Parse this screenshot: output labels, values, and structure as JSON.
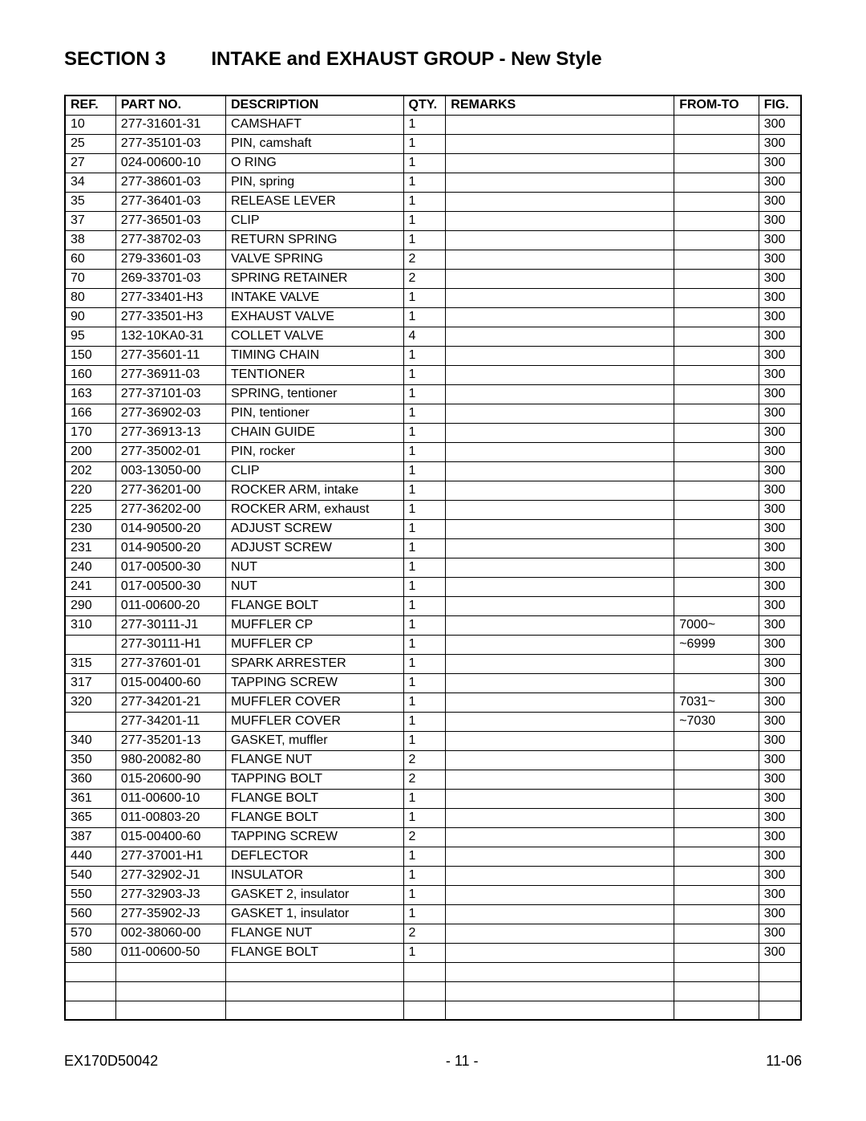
{
  "header": {
    "section_label": "SECTION 3",
    "section_title": "INTAKE and EXHAUST GROUP - New Style"
  },
  "table": {
    "columns": [
      "REF.",
      "PART NO.",
      "DESCRIPTION",
      "QTY.",
      "REMARKS",
      "FROM-TO",
      "FIG."
    ],
    "rows": [
      [
        "10",
        "277-31601-31",
        "CAMSHAFT",
        "1",
        "",
        "",
        "300"
      ],
      [
        "25",
        "277-35101-03",
        "PIN, camshaft",
        "1",
        "",
        "",
        "300"
      ],
      [
        "27",
        "024-00600-10",
        "O RING",
        "1",
        "",
        "",
        "300"
      ],
      [
        "34",
        "277-38601-03",
        "PIN, spring",
        "1",
        "",
        "",
        "300"
      ],
      [
        "35",
        "277-36401-03",
        "RELEASE LEVER",
        "1",
        "",
        "",
        "300"
      ],
      [
        "37",
        "277-36501-03",
        "CLIP",
        "1",
        "",
        "",
        "300"
      ],
      [
        "38",
        "277-38702-03",
        "RETURN SPRING",
        "1",
        "",
        "",
        "300"
      ],
      [
        "60",
        "279-33601-03",
        "VALVE SPRING",
        "2",
        "",
        "",
        "300"
      ],
      [
        "70",
        "269-33701-03",
        "SPRING RETAINER",
        "2",
        "",
        "",
        "300"
      ],
      [
        "80",
        "277-33401-H3",
        "INTAKE VALVE",
        "1",
        "",
        "",
        "300"
      ],
      [
        "90",
        "277-33501-H3",
        "EXHAUST VALVE",
        "1",
        "",
        "",
        "300"
      ],
      [
        "95",
        "132-10KA0-31",
        "COLLET VALVE",
        "4",
        "",
        "",
        "300"
      ],
      [
        "150",
        "277-35601-11",
        "TIMING CHAIN",
        "1",
        "",
        "",
        "300"
      ],
      [
        "160",
        "277-36911-03",
        "TENTIONER",
        "1",
        "",
        "",
        "300"
      ],
      [
        "163",
        "277-37101-03",
        "SPRING, tentioner",
        "1",
        "",
        "",
        "300"
      ],
      [
        "166",
        "277-36902-03",
        "PIN, tentioner",
        "1",
        "",
        "",
        "300"
      ],
      [
        "170",
        "277-36913-13",
        "CHAIN GUIDE",
        "1",
        "",
        "",
        "300"
      ],
      [
        "200",
        "277-35002-01",
        "PIN, rocker",
        "1",
        "",
        "",
        "300"
      ],
      [
        "202",
        "003-13050-00",
        "CLIP",
        "1",
        "",
        "",
        "300"
      ],
      [
        "220",
        "277-36201-00",
        "ROCKER ARM, intake",
        "1",
        "",
        "",
        "300"
      ],
      [
        "225",
        "277-36202-00",
        "ROCKER ARM, exhaust",
        "1",
        "",
        "",
        "300"
      ],
      [
        "230",
        "014-90500-20",
        "ADJUST SCREW",
        "1",
        "",
        "",
        "300"
      ],
      [
        "231",
        "014-90500-20",
        "ADJUST SCREW",
        "1",
        "",
        "",
        "300"
      ],
      [
        "240",
        "017-00500-30",
        "NUT",
        "1",
        "",
        "",
        "300"
      ],
      [
        "241",
        "017-00500-30",
        "NUT",
        "1",
        "",
        "",
        "300"
      ],
      [
        "290",
        "011-00600-20",
        "FLANGE BOLT",
        "1",
        "",
        "",
        "300"
      ],
      [
        "310",
        "277-30111-J1",
        "MUFFLER CP",
        "1",
        "",
        "7000~",
        "300"
      ],
      [
        "",
        "277-30111-H1",
        "MUFFLER CP",
        "1",
        "",
        "~6999",
        "300"
      ],
      [
        "315",
        "277-37601-01",
        "SPARK ARRESTER",
        "1",
        "",
        "",
        "300"
      ],
      [
        "317",
        "015-00400-60",
        "TAPPING SCREW",
        "1",
        "",
        "",
        "300"
      ],
      [
        "320",
        "277-34201-21",
        "MUFFLER COVER",
        "1",
        "",
        "7031~",
        "300"
      ],
      [
        "",
        "277-34201-11",
        "MUFFLER COVER",
        "1",
        "",
        "~7030",
        "300"
      ],
      [
        "340",
        "277-35201-13",
        "GASKET, muffler",
        "1",
        "",
        "",
        "300"
      ],
      [
        "350",
        "980-20082-80",
        "FLANGE NUT",
        "2",
        "",
        "",
        "300"
      ],
      [
        "360",
        "015-20600-90",
        "TAPPING BOLT",
        "2",
        "",
        "",
        "300"
      ],
      [
        "361",
        "011-00600-10",
        "FLANGE BOLT",
        "1",
        "",
        "",
        "300"
      ],
      [
        "365",
        "011-00803-20",
        "FLANGE BOLT",
        "1",
        "",
        "",
        "300"
      ],
      [
        "387",
        "015-00400-60",
        "TAPPING SCREW",
        "2",
        "",
        "",
        "300"
      ],
      [
        "440",
        "277-37001-H1",
        "DEFLECTOR",
        "1",
        "",
        "",
        "300"
      ],
      [
        "540",
        "277-32902-J1",
        "INSULATOR",
        "1",
        "",
        "",
        "300"
      ],
      [
        "550",
        "277-32903-J3",
        "GASKET 2, insulator",
        "1",
        "",
        "",
        "300"
      ],
      [
        "560",
        "277-35902-J3",
        "GASKET 1, insulator",
        "1",
        "",
        "",
        "300"
      ],
      [
        "570",
        "002-38060-00",
        "FLANGE NUT",
        "2",
        "",
        "",
        "300"
      ],
      [
        "580",
        "011-00600-50",
        "FLANGE BOLT",
        "1",
        "",
        "",
        "300"
      ],
      [
        "",
        "",
        "",
        "",
        "",
        "",
        ""
      ],
      [
        "",
        "",
        "",
        "",
        "",
        "",
        ""
      ],
      [
        "",
        "",
        "",
        "",
        "",
        "",
        ""
      ]
    ]
  },
  "footer": {
    "left": "EX170D50042",
    "center": "- 11 -",
    "right": "11-06"
  }
}
